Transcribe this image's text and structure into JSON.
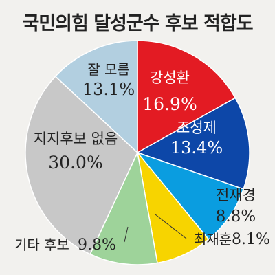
{
  "chart_data": {
    "type": "pie",
    "title": "국민의힘 달성군수 후보 적합도",
    "unit": "%",
    "slices": [
      {
        "name": "강성환",
        "value": 16.9,
        "value_text": "16.9%",
        "color": "#e31b23"
      },
      {
        "name": "조성제",
        "value": 13.4,
        "value_text": "13.4%",
        "color": "#0d47a8"
      },
      {
        "name": "전재경",
        "value": 8.8,
        "value_text": "8.8%",
        "color": "#0a9de0"
      },
      {
        "name": "최재훈",
        "value": 8.1,
        "value_text": "8.1%",
        "color": "#f7d400"
      },
      {
        "name": "기타 후보",
        "value": 9.8,
        "value_text": "9.8%",
        "color": "#9ed39a"
      },
      {
        "name": "지지후보 없음",
        "value": 30.0,
        "value_text": "30.0%",
        "color": "#c8c8c8"
      },
      {
        "name": "잘 모름",
        "value": 13.1,
        "value_text": "13.1%",
        "color": "#b2cfe0"
      }
    ]
  }
}
